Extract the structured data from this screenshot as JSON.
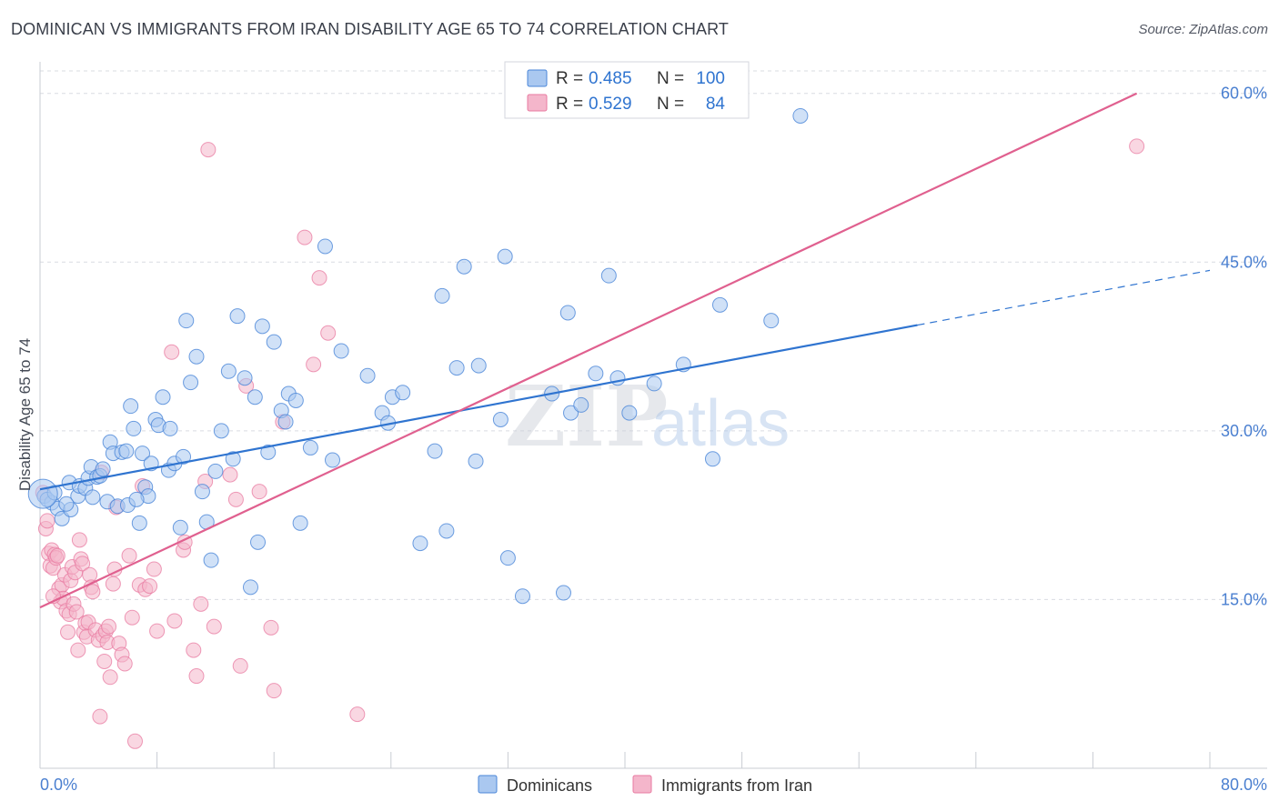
{
  "title": "DOMINICAN VS IMMIGRANTS FROM IRAN DISABILITY AGE 65 TO 74 CORRELATION CHART",
  "source": "Source: ZipAtlas.com",
  "watermark": {
    "zip": "ZIP",
    "atlas": "atlas"
  },
  "colors": {
    "blue": "#4a86d8",
    "blue_fill": "#aac8f0",
    "blue_line": "#2f74d0",
    "pink": "#e87aa0",
    "pink_fill": "#f4b6cb",
    "pink_line": "#e0608f",
    "grid": "#d9dce2",
    "tick_label": "#4a7fd0",
    "axis_label": "#444a55"
  },
  "legend": {
    "rows": [
      {
        "r_label": "R =",
        "r_value": "0.485",
        "n_label": "N =",
        "n_value": "100"
      },
      {
        "r_label": "R =",
        "r_value": "0.529",
        "n_label": "N =",
        "n_value": "84"
      }
    ]
  },
  "chart_data": {
    "type": "scatter",
    "title": "DOMINICAN VS IMMIGRANTS FROM IRAN DISABILITY AGE 65 TO 74 CORRELATION CHART",
    "xlabel": "",
    "ylabel": "Disability Age 65 to 74",
    "xlim": [
      0,
      80
    ],
    "ylim": [
      0,
      62
    ],
    "x_tick_labels": [
      "0.0%",
      "80.0%"
    ],
    "y_ticks": [
      15,
      30,
      45,
      60
    ],
    "y_tick_labels": [
      "15.0%",
      "30.0%",
      "45.0%",
      "60.0%"
    ],
    "grid": true,
    "legend_position": "bottom-center",
    "series": [
      {
        "name": "Dominicans",
        "color": "#4a86d8",
        "trend": {
          "x0": 0,
          "y0": 24.8,
          "x1": 60,
          "y1": 39.4,
          "dashed_to_x": 80
        },
        "points": [
          [
            0.3,
            24.2
          ],
          [
            0.8,
            23.6
          ],
          [
            1.2,
            23.1
          ],
          [
            1.5,
            22.2
          ],
          [
            2.0,
            25.4
          ],
          [
            2.1,
            23.0
          ],
          [
            2.6,
            24.2
          ],
          [
            2.7,
            25.1
          ],
          [
            3.1,
            24.9
          ],
          [
            3.3,
            25.8
          ],
          [
            3.5,
            26.8
          ],
          [
            3.6,
            24.1
          ],
          [
            3.9,
            25.9
          ],
          [
            4.1,
            26.0
          ],
          [
            4.3,
            26.6
          ],
          [
            4.6,
            23.7
          ],
          [
            4.8,
            29.0
          ],
          [
            5.0,
            28.0
          ],
          [
            5.3,
            23.3
          ],
          [
            5.6,
            28.1
          ],
          [
            5.9,
            28.2
          ],
          [
            6.0,
            23.4
          ],
          [
            6.2,
            32.2
          ],
          [
            6.4,
            30.2
          ],
          [
            6.8,
            21.8
          ],
          [
            7.0,
            28.0
          ],
          [
            7.2,
            25.0
          ],
          [
            7.4,
            24.2
          ],
          [
            7.6,
            27.1
          ],
          [
            7.9,
            31.0
          ],
          [
            8.1,
            30.5
          ],
          [
            8.4,
            33.0
          ],
          [
            8.8,
            26.5
          ],
          [
            8.9,
            30.2
          ],
          [
            9.2,
            27.1
          ],
          [
            9.6,
            21.4
          ],
          [
            9.8,
            27.7
          ],
          [
            10.0,
            39.8
          ],
          [
            10.3,
            34.3
          ],
          [
            10.7,
            36.6
          ],
          [
            11.1,
            24.6
          ],
          [
            11.4,
            21.9
          ],
          [
            11.7,
            18.5
          ],
          [
            12.0,
            26.4
          ],
          [
            12.4,
            30.0
          ],
          [
            12.9,
            35.3
          ],
          [
            13.2,
            27.5
          ],
          [
            13.5,
            40.2
          ],
          [
            14.0,
            34.7
          ],
          [
            14.4,
            16.1
          ],
          [
            14.7,
            33.0
          ],
          [
            14.9,
            20.1
          ],
          [
            15.2,
            39.3
          ],
          [
            15.6,
            28.1
          ],
          [
            16.0,
            37.9
          ],
          [
            16.5,
            31.8
          ],
          [
            16.8,
            30.8
          ],
          [
            17.0,
            33.3
          ],
          [
            17.5,
            32.7
          ],
          [
            17.8,
            21.8
          ],
          [
            18.5,
            28.5
          ],
          [
            19.5,
            46.4
          ],
          [
            20.0,
            27.4
          ],
          [
            20.6,
            37.1
          ],
          [
            22.4,
            34.9
          ],
          [
            23.4,
            31.6
          ],
          [
            23.8,
            30.7
          ],
          [
            24.1,
            33.0
          ],
          [
            24.8,
            33.4
          ],
          [
            26.0,
            20.0
          ],
          [
            27.0,
            28.2
          ],
          [
            27.5,
            42.0
          ],
          [
            27.8,
            21.1
          ],
          [
            28.5,
            35.6
          ],
          [
            29.0,
            44.6
          ],
          [
            29.8,
            27.3
          ],
          [
            30.0,
            35.8
          ],
          [
            31.5,
            31.0
          ],
          [
            31.8,
            45.5
          ],
          [
            32.0,
            18.7
          ],
          [
            33.0,
            15.3
          ],
          [
            35.0,
            33.3
          ],
          [
            35.8,
            15.6
          ],
          [
            36.1,
            40.5
          ],
          [
            36.3,
            31.6
          ],
          [
            37.0,
            32.3
          ],
          [
            38.0,
            35.1
          ],
          [
            38.9,
            43.8
          ],
          [
            39.5,
            34.7
          ],
          [
            40.3,
            31.6
          ],
          [
            42.0,
            34.2
          ],
          [
            44.0,
            35.9
          ],
          [
            46.0,
            27.5
          ],
          [
            46.5,
            41.2
          ],
          [
            50.0,
            39.8
          ],
          [
            52.0,
            58.0
          ],
          [
            0.5,
            23.9
          ],
          [
            1.0,
            24.5
          ],
          [
            1.8,
            23.5
          ],
          [
            6.6,
            23.9
          ]
        ]
      },
      {
        "name": "Immigrants from Iran",
        "color": "#e87aa0",
        "trend": {
          "x0": 0,
          "y0": 14.3,
          "x1": 75,
          "y1": 60.0
        },
        "points": [
          [
            0.2,
            24.5
          ],
          [
            0.4,
            21.3
          ],
          [
            0.5,
            22.0
          ],
          [
            0.6,
            19.1
          ],
          [
            0.7,
            18.0
          ],
          [
            0.8,
            19.4
          ],
          [
            0.9,
            17.8
          ],
          [
            1.0,
            19.0
          ],
          [
            1.1,
            18.7
          ],
          [
            1.2,
            18.9
          ],
          [
            1.3,
            16.0
          ],
          [
            1.4,
            14.8
          ],
          [
            1.5,
            16.3
          ],
          [
            1.6,
            15.1
          ],
          [
            1.7,
            17.2
          ],
          [
            1.8,
            14.0
          ],
          [
            2.0,
            13.7
          ],
          [
            2.1,
            16.7
          ],
          [
            2.2,
            17.9
          ],
          [
            2.3,
            14.6
          ],
          [
            2.4,
            17.4
          ],
          [
            2.5,
            13.9
          ],
          [
            2.6,
            10.5
          ],
          [
            2.7,
            20.3
          ],
          [
            2.8,
            18.6
          ],
          [
            2.9,
            18.2
          ],
          [
            3.0,
            12.1
          ],
          [
            3.1,
            12.9
          ],
          [
            3.2,
            11.7
          ],
          [
            3.3,
            13.0
          ],
          [
            3.4,
            17.2
          ],
          [
            3.5,
            16.1
          ],
          [
            3.6,
            15.7
          ],
          [
            3.8,
            12.3
          ],
          [
            4.0,
            11.4
          ],
          [
            4.1,
            4.6
          ],
          [
            4.2,
            26.3
          ],
          [
            4.3,
            11.8
          ],
          [
            4.4,
            9.5
          ],
          [
            4.5,
            12.2
          ],
          [
            4.6,
            11.2
          ],
          [
            4.7,
            12.6
          ],
          [
            4.8,
            8.1
          ],
          [
            5.0,
            16.4
          ],
          [
            5.1,
            17.7
          ],
          [
            5.2,
            23.2
          ],
          [
            5.4,
            11.1
          ],
          [
            5.6,
            10.1
          ],
          [
            5.8,
            9.3
          ],
          [
            6.1,
            18.9
          ],
          [
            6.3,
            13.4
          ],
          [
            6.5,
            2.4
          ],
          [
            6.8,
            16.3
          ],
          [
            7.0,
            25.1
          ],
          [
            7.2,
            15.9
          ],
          [
            7.5,
            16.2
          ],
          [
            7.8,
            17.7
          ],
          [
            8.0,
            12.2
          ],
          [
            9.0,
            37.0
          ],
          [
            9.2,
            13.1
          ],
          [
            9.8,
            19.4
          ],
          [
            9.9,
            20.1
          ],
          [
            10.5,
            10.5
          ],
          [
            10.7,
            8.2
          ],
          [
            11.0,
            14.6
          ],
          [
            11.5,
            55.0
          ],
          [
            11.3,
            25.5
          ],
          [
            11.9,
            12.6
          ],
          [
            13.0,
            26.1
          ],
          [
            13.4,
            23.9
          ],
          [
            13.7,
            9.1
          ],
          [
            14.1,
            34.0
          ],
          [
            15.0,
            24.6
          ],
          [
            15.8,
            12.5
          ],
          [
            16.0,
            6.9
          ],
          [
            16.6,
            30.8
          ],
          [
            18.1,
            47.2
          ],
          [
            18.7,
            35.9
          ],
          [
            19.1,
            43.6
          ],
          [
            19.7,
            38.7
          ],
          [
            21.7,
            4.8
          ],
          [
            1.9,
            12.1
          ],
          [
            0.9,
            15.3
          ],
          [
            75.0,
            55.3
          ]
        ]
      }
    ]
  }
}
